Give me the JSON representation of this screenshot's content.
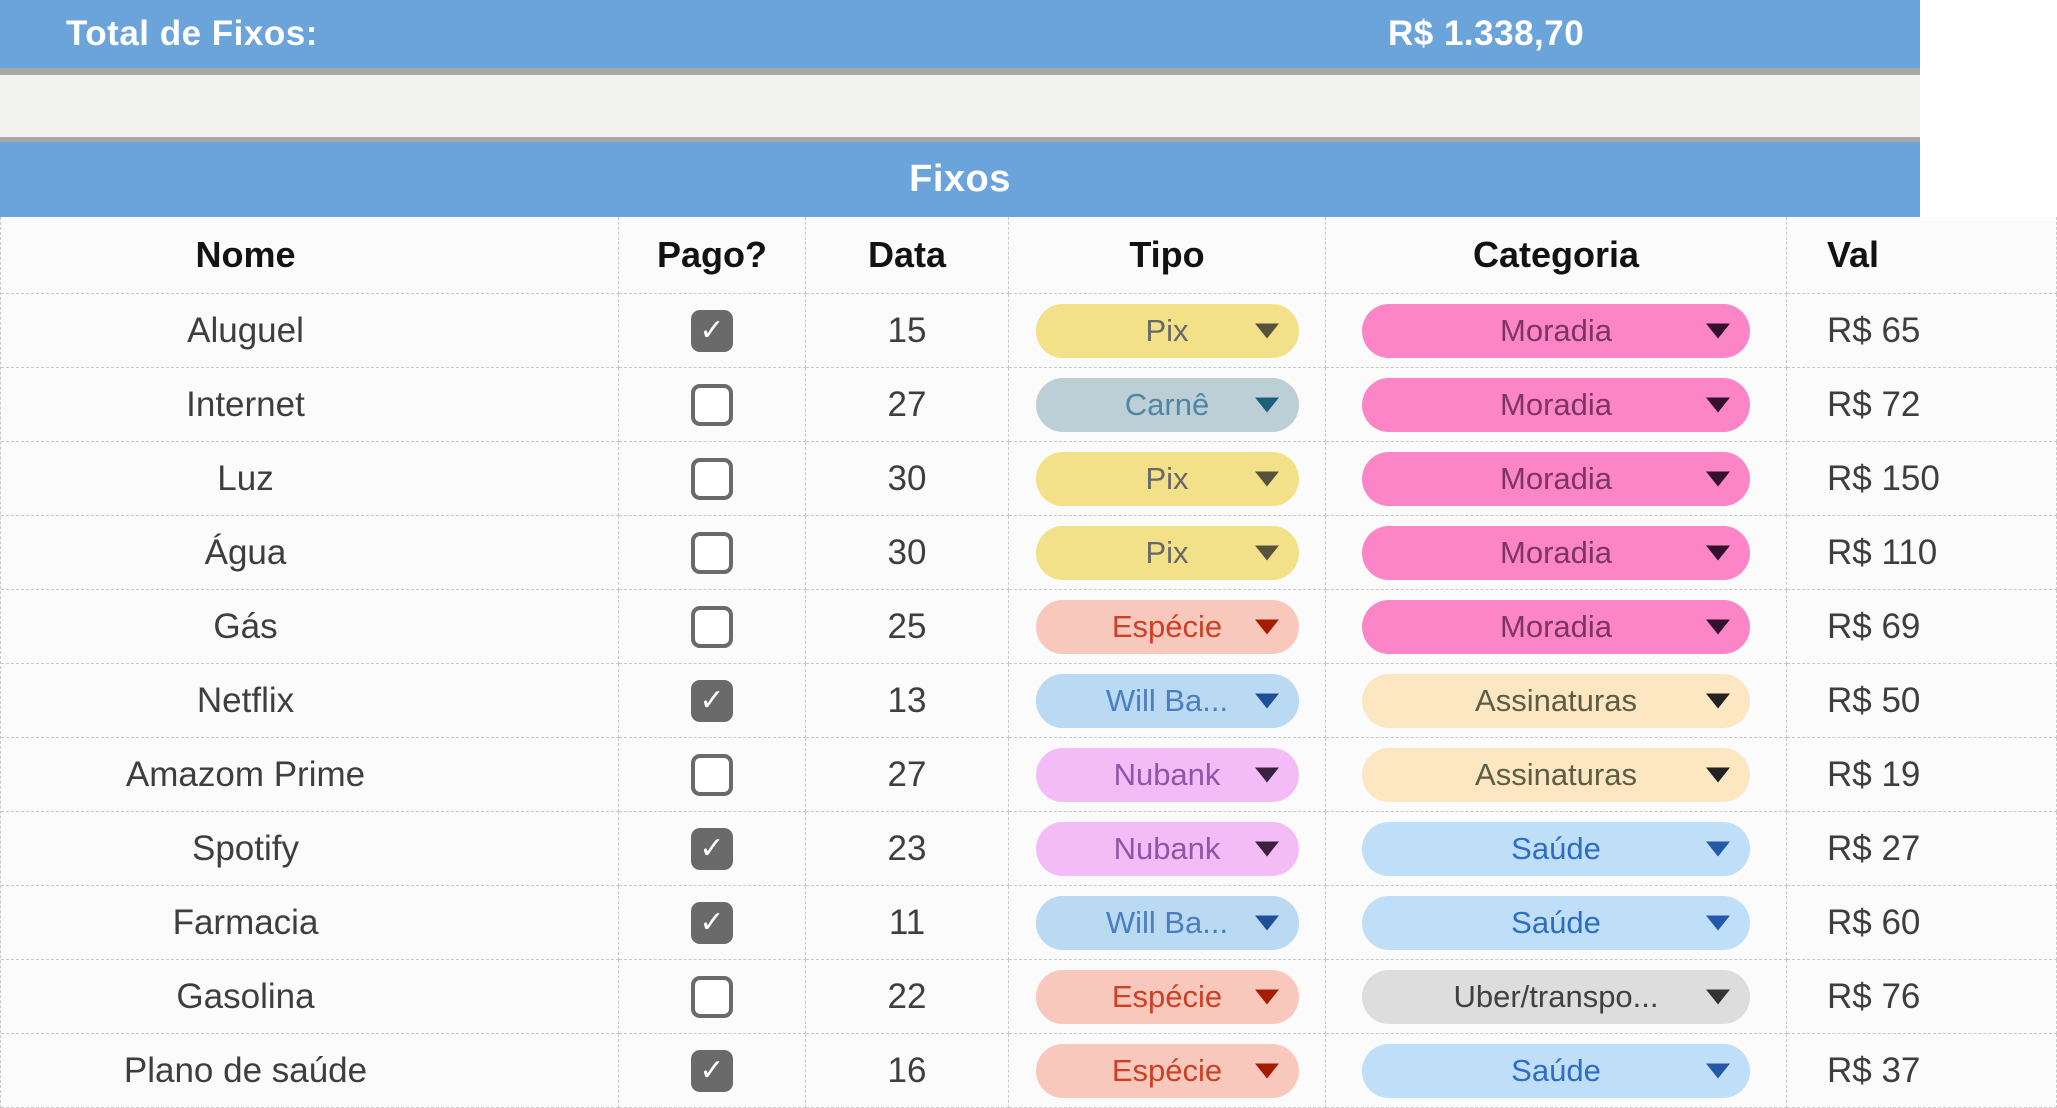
{
  "summary_bar": {
    "label": "Total de Fixos:",
    "value": "R$ 1.338,70"
  },
  "table": {
    "title": "Fixos",
    "columns": [
      "Nome",
      "Pago?",
      "Data",
      "Tipo",
      "Categoria",
      "Val"
    ],
    "rows": [
      {
        "nome": "Aluguel",
        "pago": true,
        "data": "15",
        "tipo": {
          "label": "Pix",
          "style": "pix"
        },
        "categoria": {
          "label": "Moradia",
          "style": "moradia"
        },
        "valor": "R$ 65"
      },
      {
        "nome": "Internet",
        "pago": false,
        "data": "27",
        "tipo": {
          "label": "Carnê",
          "style": "carne"
        },
        "categoria": {
          "label": "Moradia",
          "style": "moradia"
        },
        "valor": "R$ 72"
      },
      {
        "nome": "Luz",
        "pago": false,
        "data": "30",
        "tipo": {
          "label": "Pix",
          "style": "pix"
        },
        "categoria": {
          "label": "Moradia",
          "style": "moradia"
        },
        "valor": "R$ 150"
      },
      {
        "nome": "Água",
        "pago": false,
        "data": "30",
        "tipo": {
          "label": "Pix",
          "style": "pix"
        },
        "categoria": {
          "label": "Moradia",
          "style": "moradia"
        },
        "valor": "R$ 110"
      },
      {
        "nome": "Gás",
        "pago": false,
        "data": "25",
        "tipo": {
          "label": "Espécie",
          "style": "especie"
        },
        "categoria": {
          "label": "Moradia",
          "style": "moradia"
        },
        "valor": "R$ 69"
      },
      {
        "nome": "Netflix",
        "pago": true,
        "data": "13",
        "tipo": {
          "label": "Will Ba...",
          "style": "willba"
        },
        "categoria": {
          "label": "Assinaturas",
          "style": "assinaturas"
        },
        "valor": "R$ 50"
      },
      {
        "nome": "Amazom Prime",
        "pago": false,
        "data": "27",
        "tipo": {
          "label": "Nubank",
          "style": "nubank"
        },
        "categoria": {
          "label": "Assinaturas",
          "style": "assinaturas"
        },
        "valor": "R$ 19"
      },
      {
        "nome": "Spotify",
        "pago": true,
        "data": "23",
        "tipo": {
          "label": "Nubank",
          "style": "nubank"
        },
        "categoria": {
          "label": "Saúde",
          "style": "saude"
        },
        "valor": "R$ 27"
      },
      {
        "nome": "Farmacia",
        "pago": true,
        "data": "11",
        "tipo": {
          "label": "Will Ba...",
          "style": "willba"
        },
        "categoria": {
          "label": "Saúde",
          "style": "saude"
        },
        "valor": "R$ 60"
      },
      {
        "nome": "Gasolina",
        "pago": false,
        "data": "22",
        "tipo": {
          "label": "Espécie",
          "style": "especie"
        },
        "categoria": {
          "label": "Uber/transpo...",
          "style": "uber"
        },
        "valor": "R$ 76"
      },
      {
        "nome": "Plano de saúde",
        "pago": true,
        "data": "16",
        "tipo": {
          "label": "Espécie",
          "style": "especie"
        },
        "categoria": {
          "label": "Saúde",
          "style": "saude"
        },
        "valor": "R$ 37"
      }
    ]
  },
  "pill_styles": {
    "pix": {
      "bg": "#F3E189",
      "text": "#686868",
      "arrow": "#55533C"
    },
    "carne": {
      "bg": "#BDCFD6",
      "text": "#4E86A3",
      "arrow": "#1D5E79"
    },
    "especie": {
      "bg": "#F9C8BD",
      "text": "#CC4125",
      "arrow": "#A61C00"
    },
    "willba": {
      "bg": "#BAD9F2",
      "text": "#4A7FBE",
      "arrow": "#1F4F96"
    },
    "nubank": {
      "bg": "#F4BCF7",
      "text": "#8E55A8",
      "arrow": "#3A2140"
    },
    "moradia": {
      "bg": "#FB85C7",
      "text": "#7E3563",
      "arrow": "#33102B"
    },
    "assinaturas": {
      "bg": "#FCE7C2",
      "text": "#5C5D44",
      "arrow": "#222222"
    },
    "saude": {
      "bg": "#BEDFF7",
      "text": "#2F6CC3",
      "arrow": "#2558A8"
    },
    "uber": {
      "bg": "#DDDDDD",
      "text": "#404040",
      "arrow": "#333333"
    }
  },
  "icons": {
    "check": "✓",
    "dropdown_arrow": "▼"
  },
  "colors": {
    "bar_blue": "#6BA3DB",
    "divider_gray": "#A8A8A8",
    "band_gray": "#F2F2F0",
    "gridline": "#C9C9C9",
    "checkbox_gray": "#6A6A6A",
    "header_text": "#121212",
    "cell_text": "#3E3E3E",
    "bar_text": "#FFFFFF"
  }
}
